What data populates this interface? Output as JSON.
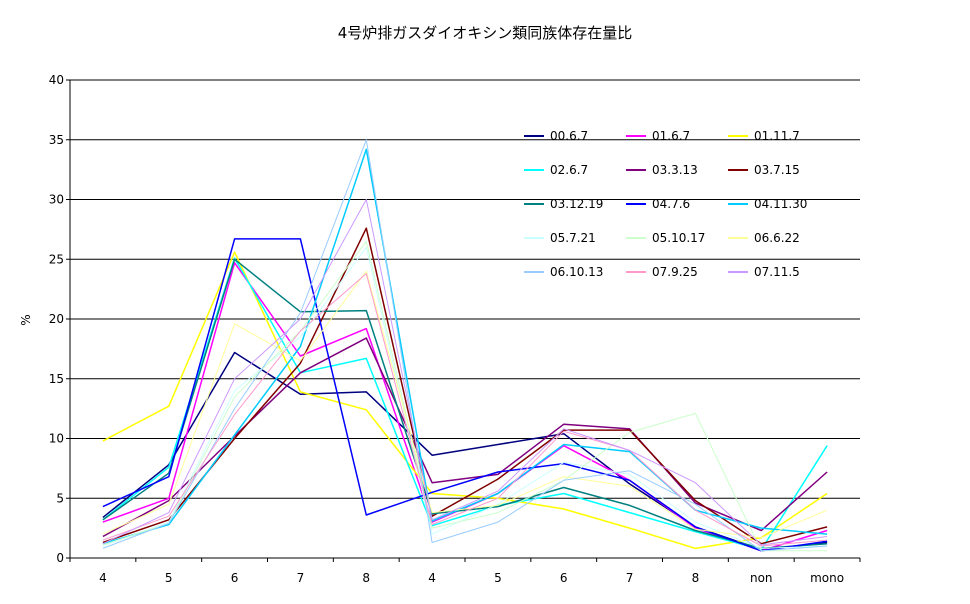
{
  "chart_data": {
    "type": "line",
    "title": "4号炉排ガスダイオキシン類同族体存在量比",
    "ylabel": "%",
    "xlabel": "",
    "categories": [
      "4",
      "5",
      "6",
      "7",
      "8",
      "4",
      "5",
      "6",
      "7",
      "8",
      "non",
      "mono"
    ],
    "ylim": [
      0,
      40
    ],
    "yticks": [
      0,
      5,
      10,
      15,
      20,
      25,
      30,
      35,
      40
    ],
    "grid": "horizontal",
    "legend_position": "top-right",
    "series": [
      {
        "name": "00.6.7",
        "color": "#000080",
        "width": 1.5,
        "values": [
          3.4,
          7.8,
          17.2,
          13.7,
          13.9,
          8.6,
          9.5,
          10.4,
          6.2,
          2.6,
          0.7,
          1.3
        ]
      },
      {
        "name": "01.6.7",
        "color": "#FF00FF",
        "width": 1.5,
        "values": [
          3.0,
          5.0,
          24.7,
          16.9,
          19.2,
          3.0,
          5.4,
          9.4,
          6.5,
          2.5,
          0.6,
          2.3
        ]
      },
      {
        "name": "01.11.7",
        "color": "#FFFF00",
        "width": 1.5,
        "values": [
          9.8,
          12.7,
          25.6,
          13.9,
          12.4,
          5.4,
          5.0,
          4.1,
          2.5,
          0.8,
          1.7,
          5.4
        ]
      },
      {
        "name": "02.6.7",
        "color": "#00FFFF",
        "width": 1.5,
        "values": [
          3.2,
          7.6,
          25.1,
          15.5,
          16.7,
          2.7,
          4.4,
          5.4,
          3.8,
          2.2,
          0.7,
          9.4
        ]
      },
      {
        "name": "03.3.13",
        "color": "#800080",
        "width": 1.5,
        "values": [
          1.8,
          4.8,
          10.2,
          15.5,
          18.4,
          6.3,
          7.0,
          11.2,
          10.8,
          4.6,
          2.3,
          7.2
        ]
      },
      {
        "name": "03.7.15",
        "color": "#800000",
        "width": 1.5,
        "values": [
          1.3,
          3.2,
          10.0,
          16.3,
          27.6,
          3.5,
          6.6,
          10.7,
          10.7,
          4.8,
          1.2,
          2.6
        ]
      },
      {
        "name": "03.12.19",
        "color": "#008080",
        "width": 1.5,
        "values": [
          3.2,
          7.1,
          25.0,
          20.6,
          20.7,
          3.7,
          4.3,
          5.9,
          4.4,
          2.3,
          0.8,
          1.2
        ]
      },
      {
        "name": "04.7.6",
        "color": "#0000FF",
        "width": 1.5,
        "values": [
          4.3,
          6.8,
          26.7,
          26.7,
          3.6,
          5.5,
          7.2,
          7.9,
          6.5,
          2.6,
          0.6,
          1.4
        ]
      },
      {
        "name": "04.11.30",
        "color": "#00CCFF",
        "width": 1.5,
        "values": [
          1.2,
          2.8,
          10.3,
          17.7,
          34.2,
          3.1,
          5.4,
          9.5,
          8.9,
          4.0,
          2.5,
          2.0
        ]
      },
      {
        "name": "05.7.21",
        "color": "#CCFFFF",
        "width": 1,
        "values": [
          1.0,
          3.0,
          14.0,
          18.5,
          26.0,
          2.0,
          4.5,
          8.0,
          7.0,
          3.0,
          0.8,
          1.0
        ]
      },
      {
        "name": "05.10.17",
        "color": "#CCFFCC",
        "width": 1,
        "values": [
          1.1,
          2.9,
          13.5,
          19.0,
          26.5,
          2.5,
          3.8,
          6.5,
          10.5,
          12.1,
          0.6,
          0.6
        ]
      },
      {
        "name": "06.6.22",
        "color": "#FFFF99",
        "width": 1,
        "values": [
          2.0,
          4.5,
          19.6,
          16.5,
          24.0,
          3.8,
          4.4,
          6.8,
          6.0,
          2.4,
          1.7,
          4.0
        ]
      },
      {
        "name": "06.10.13",
        "color": "#99CCFF",
        "width": 1,
        "values": [
          0.8,
          2.9,
          12.5,
          20.5,
          35.0,
          1.3,
          3.0,
          6.5,
          7.3,
          4.5,
          0.6,
          1.0
        ]
      },
      {
        "name": "07.9.25",
        "color": "#FF99CC",
        "width": 1,
        "values": [
          1.5,
          3.5,
          12.0,
          19.0,
          23.8,
          2.8,
          5.0,
          10.6,
          9.0,
          4.0,
          1.0,
          1.5
        ]
      },
      {
        "name": "07.11.5",
        "color": "#CC99FF",
        "width": 1,
        "values": [
          1.2,
          3.8,
          15.0,
          20.0,
          30.0,
          3.2,
          5.6,
          10.8,
          9.0,
          6.3,
          1.1,
          1.8
        ]
      }
    ]
  }
}
